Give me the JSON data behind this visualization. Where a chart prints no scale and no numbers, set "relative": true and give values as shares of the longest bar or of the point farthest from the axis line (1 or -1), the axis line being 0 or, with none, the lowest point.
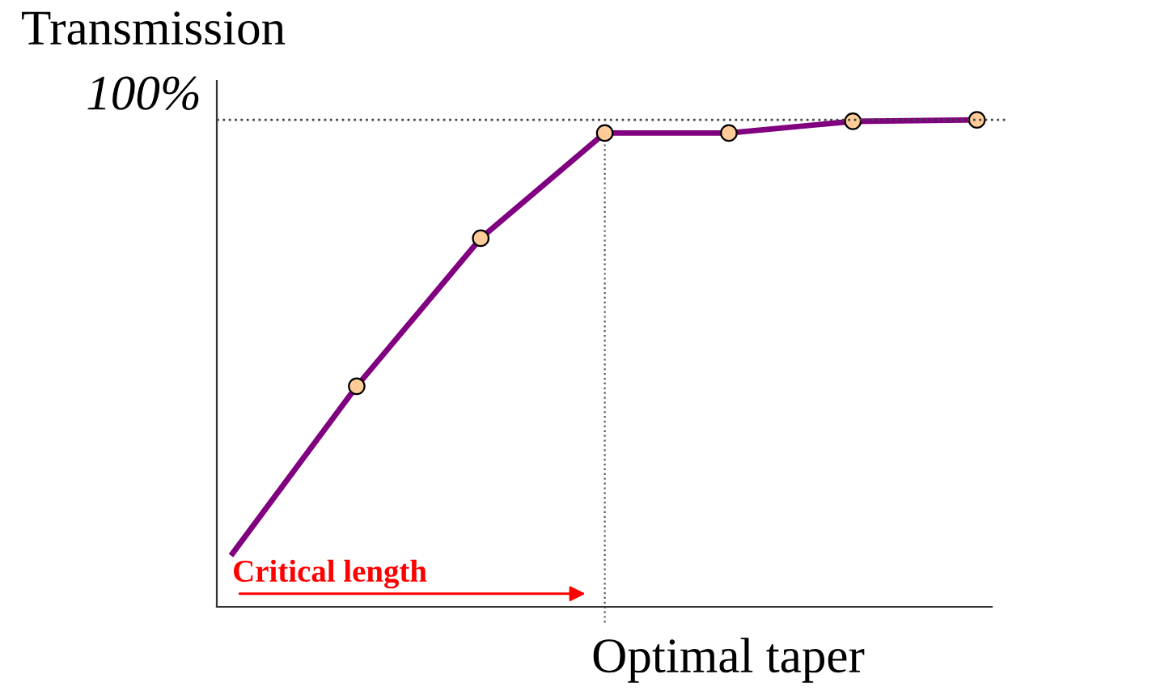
{
  "chart_data": {
    "type": "line",
    "relative": true,
    "xlabel": "Optimal taper",
    "ylabel": "Transmission",
    "tick_labels": false,
    "marker": "circle",
    "categories": [
      null,
      null,
      null,
      null,
      null,
      null,
      null
    ],
    "series": [
      {
        "color": "#800080",
        "values": [
          0.11,
          0.453,
          0.757,
          0.973,
          0.973,
          0.997,
          1
        ]
      }
    ],
    "ref_lines": [
      {
        "axis": "y",
        "value": 1,
        "label": "100%",
        "line_style": "dotted"
      }
    ],
    "annotations": [
      "Critical length"
    ]
  }
}
